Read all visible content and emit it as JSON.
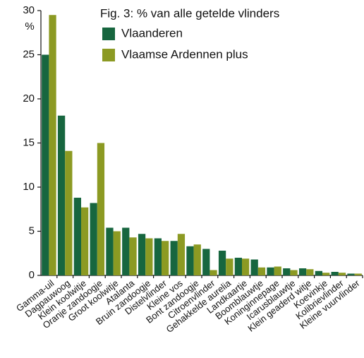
{
  "chart_data": {
    "type": "bar",
    "title": "Fig. 3: % van alle getelde vlinders",
    "ylabel": "%",
    "categories": [
      "Gamma-uil",
      "Dagpauwoog",
      "Klein koolwitje",
      "Oranje zandoogje",
      "Groot koolwitje",
      "Atalanta",
      "Bruin zandoogje",
      "Distelvlinder",
      "Kleine vos",
      "Bont zandoogje",
      "Citroenvlinder",
      "Gehakkelde aurelia",
      "Landkaartje",
      "Boomblauwtje",
      "Koninginnepage",
      "Icarusblauwtje",
      "Klein geaderd witje",
      "Koevinkje",
      "Kolibrievlinder",
      "Kleine vuurvlinder"
    ],
    "series": [
      {
        "name": "Vlaanderen",
        "color": "#17663f",
        "values": [
          25.0,
          18.1,
          8.8,
          8.2,
          5.4,
          5.4,
          4.7,
          4.2,
          3.9,
          3.3,
          3.0,
          2.8,
          2.0,
          1.8,
          0.9,
          0.8,
          0.8,
          0.5,
          0.4,
          0.2
        ]
      },
      {
        "name": "Vlaamse Ardennen plus",
        "color": "#8c9a23",
        "values": [
          29.5,
          14.1,
          7.7,
          15.0,
          5.0,
          4.3,
          4.2,
          3.9,
          4.7,
          3.5,
          0.6,
          1.9,
          1.9,
          0.9,
          1.0,
          0.6,
          0.7,
          0.3,
          0.3,
          0.2
        ]
      }
    ],
    "ylim": [
      0,
      30
    ],
    "yticks": [
      0,
      5,
      10,
      15,
      20,
      25,
      30
    ],
    "grid": false
  }
}
